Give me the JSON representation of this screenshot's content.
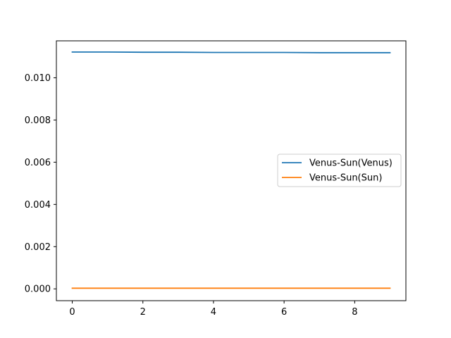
{
  "chart_data": {
    "type": "line",
    "title": "",
    "xlabel": "",
    "ylabel": "",
    "xlim": [
      -0.45,
      9.45
    ],
    "ylim": [
      -0.00056,
      0.01175
    ],
    "x_ticks": [
      0,
      2,
      4,
      6,
      8
    ],
    "x_tick_labels": [
      "0",
      "2",
      "4",
      "6",
      "8"
    ],
    "y_ticks": [
      0.0,
      0.002,
      0.004,
      0.006,
      0.008,
      0.01
    ],
    "y_tick_labels": [
      "0.000",
      "0.002",
      "0.004",
      "0.006",
      "0.008",
      "0.010"
    ],
    "grid": false,
    "legend_position": "center-right",
    "x": [
      0,
      1,
      2,
      3,
      4,
      5,
      6,
      7,
      8,
      9
    ],
    "series": [
      {
        "name": "Venus-Sun(Venus)",
        "color": "#1f77b4",
        "values": [
          0.01122,
          0.01122,
          0.01121,
          0.01121,
          0.0112,
          0.0112,
          0.0112,
          0.01119,
          0.01119,
          0.01119
        ]
      },
      {
        "name": "Venus-Sun(Sun)",
        "color": "#ff7f0e",
        "values": [
          3e-05,
          3e-05,
          3e-05,
          3e-05,
          3e-05,
          3e-05,
          3e-05,
          3e-05,
          3e-05,
          3e-05
        ]
      }
    ]
  }
}
